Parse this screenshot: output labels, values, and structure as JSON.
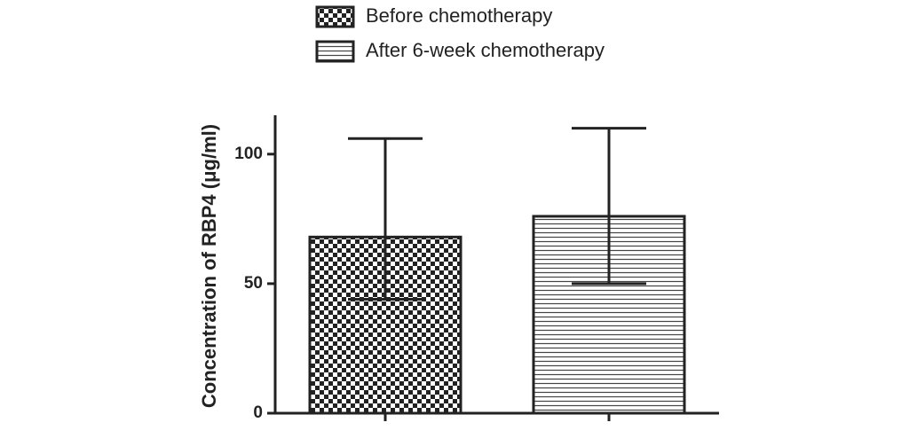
{
  "chart_data": {
    "type": "bar",
    "y_label": "Concentration of RBP4 (μg/ml)",
    "categories": [
      null,
      null
    ],
    "series": [
      {
        "name": "Before chemotherapy",
        "pattern": "checker",
        "values": [
          68,
          null
        ],
        "errors_plus": [
          38,
          null
        ],
        "errors_minus": [
          24,
          null
        ]
      },
      {
        "name": "After 6-week chemotherapy",
        "pattern": "hlines",
        "values": [
          null,
          76
        ],
        "errors_plus": [
          null,
          34
        ],
        "errors_minus": [
          null,
          26
        ]
      }
    ],
    "ylim": [
      0,
      115
    ],
    "yticks": [
      0,
      50,
      100
    ],
    "grid": false
  }
}
